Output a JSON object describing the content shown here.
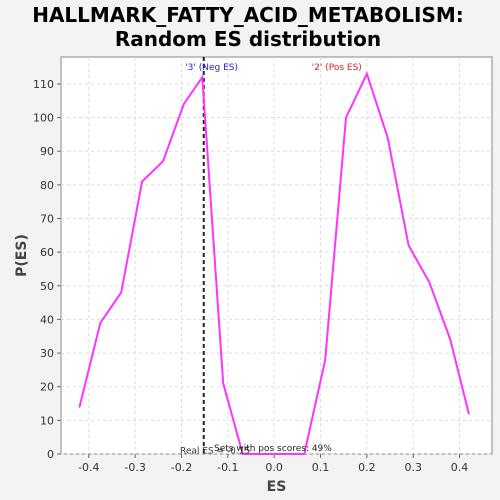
{
  "chart_data": {
    "type": "line",
    "title_line1": "HALLMARK_FATTY_ACID_METABOLISM:",
    "title_line2": "Random ES distribution",
    "xlabel": "ES",
    "ylabel": "P(ES)",
    "xlim": [
      -0.46,
      0.47
    ],
    "ylim": [
      0,
      118
    ],
    "x_ticks": [
      -0.4,
      -0.3,
      -0.2,
      -0.1,
      0.0,
      0.1,
      0.2,
      0.3,
      0.4
    ],
    "x_tick_labels": [
      "-0.4",
      "-0.3",
      "-0.2",
      "-0.1",
      "0.0",
      "0.1",
      "0.2",
      "0.3",
      "0.4"
    ],
    "y_ticks": [
      0,
      10,
      20,
      30,
      40,
      50,
      60,
      70,
      80,
      90,
      100,
      110
    ],
    "grid": true,
    "series": [
      {
        "color": "#ff33ff",
        "x": [
          -0.42,
          -0.375,
          -0.33,
          -0.285,
          -0.24,
          -0.195,
          -0.155,
          -0.11,
          -0.068,
          -0.025,
          0.02,
          0.065,
          0.11,
          0.155,
          0.2,
          0.245,
          0.29,
          0.335,
          0.38,
          0.42
        ],
        "y": [
          14,
          39,
          48,
          81,
          87,
          104,
          112,
          21,
          0,
          0,
          0,
          0,
          28,
          100,
          113,
          94,
          62,
          51,
          34,
          12
        ]
      }
    ],
    "annotations": {
      "neg_label": "'3' (Neg ES)",
      "neg_color": "#2222cc",
      "pos_label": "'2' (Pos ES)",
      "pos_color": "#dd2222",
      "real_es_label": "Real ES = -0.15",
      "real_es_x": -0.152,
      "sets_label": "Sets with pos scores: 49%"
    }
  }
}
